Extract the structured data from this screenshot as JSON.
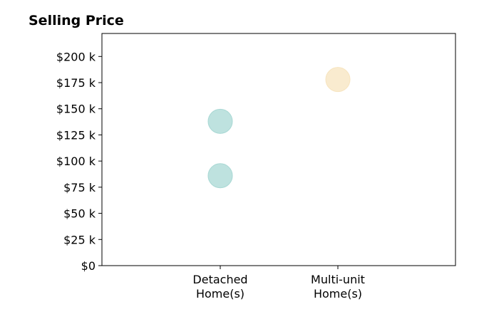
{
  "chart_data": {
    "type": "scatter",
    "title": "Selling Price",
    "xlabel": "",
    "ylabel": "",
    "categories": [
      [
        "Detached",
        "Home(s)"
      ],
      [
        "Multi-unit",
        "Home(s)"
      ]
    ],
    "ylim": [
      0,
      222000
    ],
    "yticks": [
      0,
      25000,
      50000,
      75000,
      100000,
      125000,
      150000,
      175000,
      200000
    ],
    "ytick_labels": [
      "$0",
      "$25 k",
      "$50 k",
      "$75 k",
      "$100 k",
      "$125 k",
      "$150 k",
      "$175 k",
      "$200 k"
    ],
    "points": [
      {
        "category": 0,
        "value": 138000,
        "color": "#a8d8d4"
      },
      {
        "category": 0,
        "value": 86000,
        "color": "#a8d8d4"
      },
      {
        "category": 1,
        "value": 178000,
        "color": "#f7e4bf"
      }
    ],
    "grid": false,
    "legend": "none"
  }
}
